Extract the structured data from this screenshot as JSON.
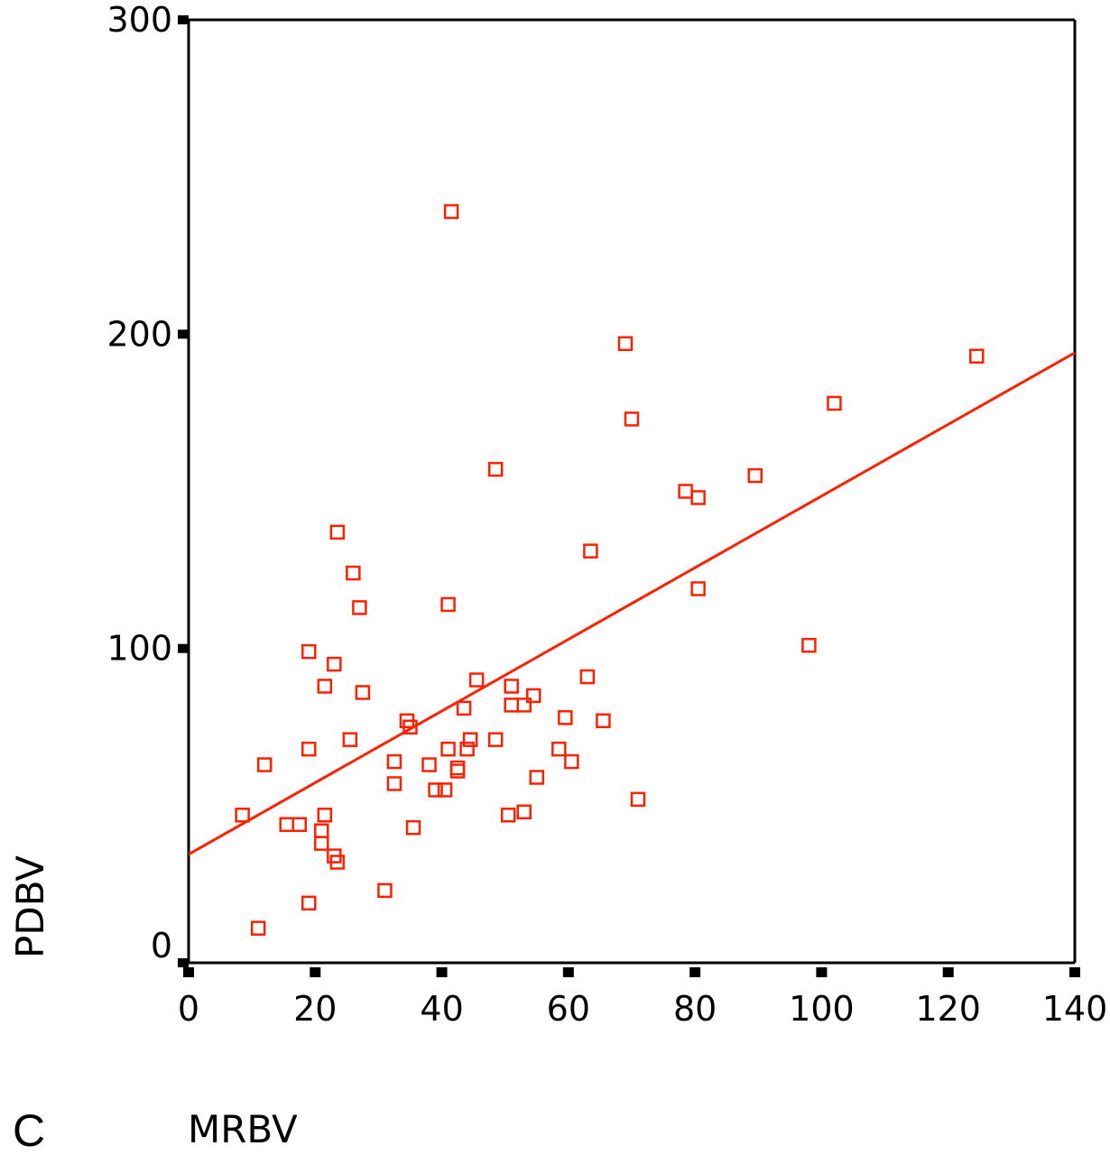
{
  "panel_label": "C",
  "colors": {
    "marker": "#ff2000",
    "line": "#ff2000",
    "axis": "#000000"
  },
  "chart_data": {
    "type": "scatter",
    "xlabel": "MRBV",
    "ylabel": "PDBV",
    "xlim": [
      0,
      140
    ],
    "ylim": [
      0,
      300
    ],
    "x_ticks": [
      0,
      20,
      40,
      60,
      80,
      100,
      120,
      140
    ],
    "y_ticks": [
      0,
      100,
      200,
      300
    ],
    "x_tick_labels": [
      "0",
      "20",
      "40",
      "60",
      "80",
      "100",
      "120",
      "140"
    ],
    "y_tick_labels": [
      "0",
      "100",
      "200",
      "300"
    ],
    "marker": "open-square",
    "grid": false,
    "points": [
      [
        8.5,
        47
      ],
      [
        11,
        11
      ],
      [
        12,
        63
      ],
      [
        15.5,
        44
      ],
      [
        17.5,
        44
      ],
      [
        19,
        99
      ],
      [
        19,
        68
      ],
      [
        19,
        19
      ],
      [
        21,
        42
      ],
      [
        21,
        38
      ],
      [
        21.5,
        88
      ],
      [
        21.5,
        47
      ],
      [
        23,
        34
      ],
      [
        23,
        95
      ],
      [
        23.5,
        32
      ],
      [
        23.5,
        137
      ],
      [
        25.5,
        71
      ],
      [
        26,
        124
      ],
      [
        27,
        113
      ],
      [
        27.5,
        86
      ],
      [
        31,
        23
      ],
      [
        32.5,
        64
      ],
      [
        32.5,
        57
      ],
      [
        34.5,
        77
      ],
      [
        35,
        75
      ],
      [
        35.5,
        43
      ],
      [
        38,
        63
      ],
      [
        39,
        55
      ],
      [
        40.5,
        55
      ],
      [
        41,
        68
      ],
      [
        41,
        114
      ],
      [
        41.5,
        239
      ],
      [
        42.5,
        61
      ],
      [
        42.5,
        62
      ],
      [
        43.5,
        81
      ],
      [
        44,
        68
      ],
      [
        44.5,
        71
      ],
      [
        45.5,
        90
      ],
      [
        48.5,
        71
      ],
      [
        48.5,
        157
      ],
      [
        50.5,
        47
      ],
      [
        51,
        88
      ],
      [
        51,
        82
      ],
      [
        53,
        82
      ],
      [
        53,
        48
      ],
      [
        54.5,
        85
      ],
      [
        55,
        59
      ],
      [
        58.5,
        68
      ],
      [
        59.5,
        78
      ],
      [
        60.5,
        64
      ],
      [
        63,
        91
      ],
      [
        63.5,
        131
      ],
      [
        65.5,
        77
      ],
      [
        69,
        197
      ],
      [
        70,
        173
      ],
      [
        71,
        52
      ],
      [
        78.5,
        150
      ],
      [
        80.5,
        148
      ],
      [
        80.5,
        119
      ],
      [
        89.5,
        155
      ],
      [
        98,
        101
      ],
      [
        102,
        178
      ],
      [
        124.5,
        193
      ]
    ],
    "regression": {
      "intercept": 34.5,
      "slope": 1.14
    }
  }
}
